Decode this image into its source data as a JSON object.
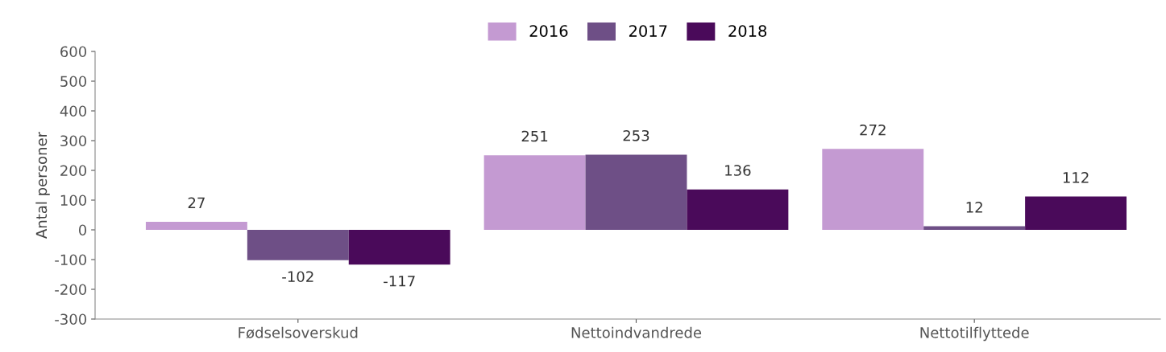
{
  "chart_data": {
    "type": "bar",
    "ylabel": "Antal personer",
    "categories": [
      "Fødselsoverskud",
      "Nettoindvandrede",
      "Nettotilflyttede"
    ],
    "series": [
      {
        "name": "2016",
        "color": "#c49ad2",
        "values": [
          27,
          251,
          272
        ]
      },
      {
        "name": "2017",
        "color": "#6e4f86",
        "values": [
          -102,
          253,
          12
        ]
      },
      {
        "name": "2018",
        "color": "#4a0a5a",
        "values": [
          -117,
          136,
          112
        ]
      }
    ],
    "ylim": [
      -300,
      600
    ],
    "yticks": [
      -300,
      -200,
      -100,
      0,
      100,
      200,
      300,
      400,
      500,
      600
    ],
    "data_labels": true,
    "legend": "top",
    "grid": false
  }
}
